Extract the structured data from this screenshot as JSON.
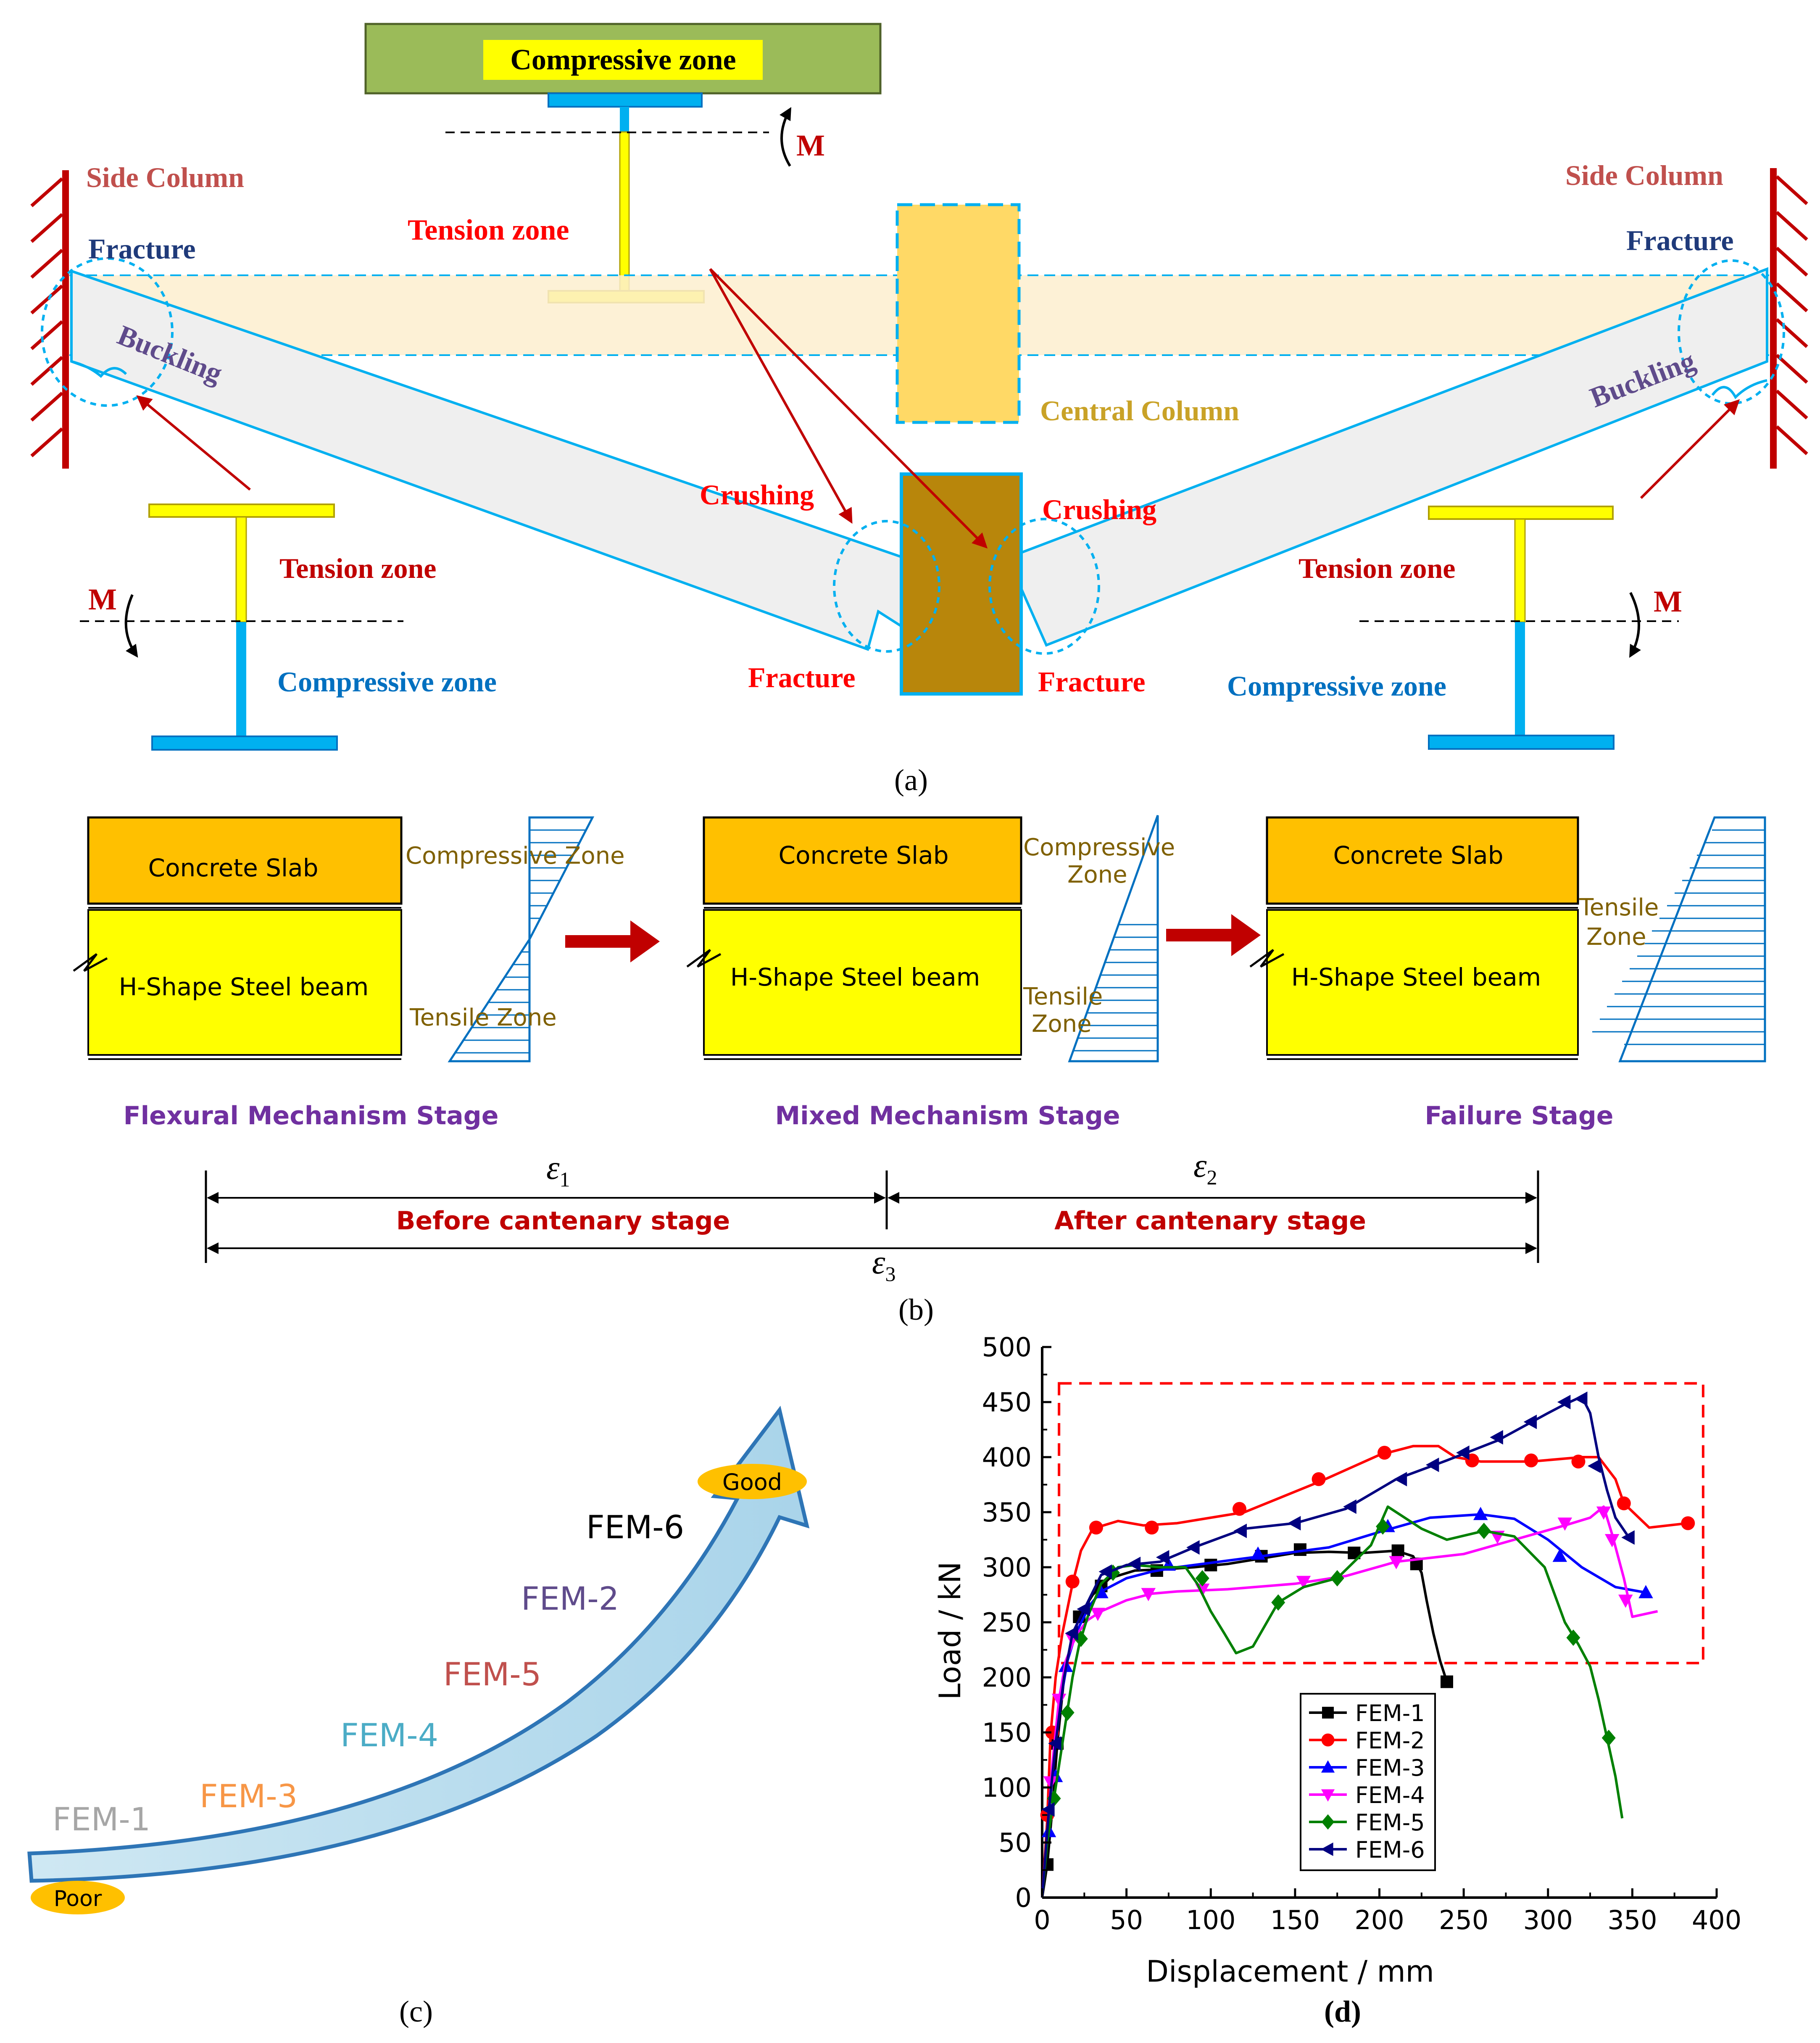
{
  "colors": {
    "dark_red": "#c00000",
    "red": "#ff0000",
    "bright_blue": "#0070c0",
    "cyan": "#00b0f0",
    "navy": "#1f3a7a",
    "olive_text": "#7f6000",
    "purple": "#7030a0",
    "gold_text": "#c9a227",
    "yellow": "#ffff00",
    "orange_slab": "#ffc000",
    "green_block": "#9bbb59",
    "light_beam": "#efefef",
    "band": "#fdefcf",
    "brown": "#b8860b"
  },
  "panel_a": {
    "top_box_label": "Compressive zone",
    "side_column_left": "Side Column",
    "side_column_right": "Side Column",
    "fracture": "Fracture",
    "buckling": "Buckling",
    "tension_zone": "Tension zone",
    "compressive_zone": "Compressive zone",
    "central_column": "Central Column",
    "crushing": "Crushing",
    "moment": "M",
    "caption": "(a)"
  },
  "panel_b": {
    "concrete_slab": "Concrete Slab",
    "steel_beam": "H-Shape Steel beam",
    "stage1": {
      "compressive": "Compressive Zone",
      "tensile": "Tensile Zone",
      "name": "Flexural Mechanism Stage"
    },
    "stage2": {
      "compressive_1": "Compressive",
      "compressive_2": "Zone",
      "tensile_1": "Tensile",
      "tensile_2": "Zone",
      "name": "Mixed Mechanism Stage"
    },
    "stage3": {
      "tensile_1": "Tensile",
      "tensile_2": "Zone",
      "name": "Failure Stage"
    },
    "eps": "ε",
    "eps1_sub": "1",
    "eps2_sub": "2",
    "eps3_sub": "3",
    "before": "Before cantenary stage",
    "after": "After  cantenary stage",
    "caption": "(b)"
  },
  "panel_c": {
    "good": "Good",
    "poor": "Poor",
    "ranking": [
      {
        "label": "FEM-6",
        "color": "#000000"
      },
      {
        "label": "FEM-2",
        "color": "#5f4b8b"
      },
      {
        "label": "FEM-5",
        "color": "#c0504d"
      },
      {
        "label": "FEM-4",
        "color": "#4bacc6"
      },
      {
        "label": "FEM-3",
        "color": "#f79646"
      },
      {
        "label": "FEM-1",
        "color": "#a6a6a6"
      }
    ],
    "caption": "(c)"
  },
  "chart_data": {
    "type": "line",
    "title": "",
    "xlabel": "Displacement / mm",
    "ylabel": "Load / kN",
    "xlim": [
      0,
      400
    ],
    "ylim": [
      0,
      500
    ],
    "xticks": [
      "0",
      "50",
      "100",
      "150",
      "200",
      "250",
      "300",
      "350",
      "400"
    ],
    "yticks": [
      "0",
      "50",
      "100",
      "150",
      "200",
      "250",
      "300",
      "350",
      "400",
      "450",
      "500"
    ],
    "grid": false,
    "legend_position": "bottom-center",
    "highlight_box": {
      "x": [
        10,
        392
      ],
      "y": [
        213,
        467
      ],
      "color": "#ff0000"
    },
    "series": [
      {
        "name": "FEM-1",
        "color": "#000000",
        "marker": "square",
        "points": [
          [
            0,
            0
          ],
          [
            3,
            30
          ],
          [
            6,
            80
          ],
          [
            9,
            140
          ],
          [
            13,
            200
          ],
          [
            17,
            230
          ],
          [
            22,
            255
          ],
          [
            30,
            275
          ],
          [
            40,
            290
          ],
          [
            55,
            297
          ],
          [
            70,
            298
          ],
          [
            90,
            300
          ],
          [
            110,
            303
          ],
          [
            130,
            308
          ],
          [
            150,
            313
          ],
          [
            170,
            314
          ],
          [
            190,
            313
          ],
          [
            210,
            315
          ],
          [
            220,
            310
          ],
          [
            225,
            295
          ],
          [
            228,
            270
          ],
          [
            232,
            240
          ],
          [
            236,
            215
          ],
          [
            240,
            196
          ]
        ],
        "marker_points": [
          [
            3,
            30
          ],
          [
            9,
            140
          ],
          [
            22,
            255
          ],
          [
            35,
            283
          ],
          [
            68,
            297
          ],
          [
            100,
            302
          ],
          [
            130,
            310
          ],
          [
            153,
            316
          ],
          [
            185,
            313
          ],
          [
            211,
            315
          ],
          [
            222,
            303
          ],
          [
            240,
            196
          ]
        ]
      },
      {
        "name": "FEM-2",
        "color": "#ff0000",
        "marker": "circle",
        "points": [
          [
            0,
            0
          ],
          [
            3,
            70
          ],
          [
            5,
            148
          ],
          [
            8,
            200
          ],
          [
            12,
            240
          ],
          [
            18,
            285
          ],
          [
            23,
            315
          ],
          [
            30,
            335
          ],
          [
            45,
            342
          ],
          [
            60,
            338
          ],
          [
            80,
            340
          ],
          [
            120,
            350
          ],
          [
            165,
            378
          ],
          [
            200,
            402
          ],
          [
            220,
            410
          ],
          [
            235,
            410
          ],
          [
            245,
            400
          ],
          [
            260,
            396
          ],
          [
            290,
            396
          ],
          [
            320,
            400
          ],
          [
            330,
            400
          ],
          [
            340,
            380
          ],
          [
            345,
            358
          ],
          [
            360,
            336
          ],
          [
            383,
            340
          ]
        ],
        "marker_points": [
          [
            3,
            75
          ],
          [
            6,
            150
          ],
          [
            18,
            287
          ],
          [
            32,
            336
          ],
          [
            65,
            336
          ],
          [
            117,
            353
          ],
          [
            164,
            380
          ],
          [
            203,
            404
          ],
          [
            255,
            397
          ],
          [
            290,
            397
          ],
          [
            318,
            396
          ],
          [
            345,
            358
          ],
          [
            383,
            340
          ]
        ]
      },
      {
        "name": "FEM-3",
        "color": "#0000ff",
        "marker": "triangle-up",
        "points": [
          [
            0,
            0
          ],
          [
            3,
            60
          ],
          [
            6,
            110
          ],
          [
            10,
            170
          ],
          [
            15,
            215
          ],
          [
            20,
            240
          ],
          [
            28,
            265
          ],
          [
            35,
            278
          ],
          [
            50,
            290
          ],
          [
            65,
            296
          ],
          [
            80,
            300
          ],
          [
            110,
            306
          ],
          [
            140,
            312
          ],
          [
            170,
            318
          ],
          [
            200,
            332
          ],
          [
            230,
            345
          ],
          [
            260,
            348
          ],
          [
            280,
            344
          ],
          [
            300,
            325
          ],
          [
            320,
            300
          ],
          [
            340,
            282
          ],
          [
            358,
            277
          ]
        ],
        "marker_points": [
          [
            4,
            60
          ],
          [
            8,
            110
          ],
          [
            14,
            210
          ],
          [
            20,
            240
          ],
          [
            35,
            277
          ],
          [
            75,
            302
          ],
          [
            128,
            312
          ],
          [
            205,
            337
          ],
          [
            260,
            348
          ],
          [
            307,
            310
          ],
          [
            358,
            277
          ]
        ]
      },
      {
        "name": "FEM-4",
        "color": "#ff00ff",
        "marker": "triangle-down",
        "points": [
          [
            0,
            0
          ],
          [
            3,
            60
          ],
          [
            6,
            120
          ],
          [
            10,
            180
          ],
          [
            14,
            215
          ],
          [
            20,
            238
          ],
          [
            27,
            252
          ],
          [
            35,
            260
          ],
          [
            50,
            270
          ],
          [
            65,
            276
          ],
          [
            80,
            278
          ],
          [
            110,
            280
          ],
          [
            150,
            285
          ],
          [
            180,
            292
          ],
          [
            210,
            305
          ],
          [
            250,
            312
          ],
          [
            280,
            325
          ],
          [
            310,
            338
          ],
          [
            325,
            345
          ],
          [
            333,
            355
          ],
          [
            338,
            330
          ],
          [
            345,
            290
          ],
          [
            350,
            255
          ],
          [
            365,
            260
          ]
        ],
        "marker_points": [
          [
            5,
            105
          ],
          [
            10,
            180
          ],
          [
            18,
            235
          ],
          [
            33,
            258
          ],
          [
            63,
            276
          ],
          [
            95,
            280
          ],
          [
            155,
            287
          ],
          [
            210,
            305
          ],
          [
            270,
            328
          ],
          [
            310,
            340
          ],
          [
            333,
            350
          ],
          [
            338,
            325
          ],
          [
            346,
            270
          ]
        ]
      },
      {
        "name": "FEM-5",
        "color": "#008000",
        "marker": "diamond",
        "points": [
          [
            0,
            0
          ],
          [
            3,
            50
          ],
          [
            7,
            90
          ],
          [
            11,
            130
          ],
          [
            15,
            170
          ],
          [
            18,
            200
          ],
          [
            22,
            230
          ],
          [
            27,
            255
          ],
          [
            35,
            285
          ],
          [
            45,
            300
          ],
          [
            55,
            302
          ],
          [
            70,
            300
          ],
          [
            85,
            300
          ],
          [
            92,
            285
          ],
          [
            100,
            260
          ],
          [
            108,
            240
          ],
          [
            115,
            222
          ],
          [
            125,
            228
          ],
          [
            140,
            268
          ],
          [
            155,
            282
          ],
          [
            175,
            290
          ],
          [
            195,
            320
          ],
          [
            205,
            355
          ],
          [
            225,
            335
          ],
          [
            240,
            325
          ],
          [
            262,
            333
          ],
          [
            280,
            328
          ],
          [
            298,
            300
          ],
          [
            310,
            250
          ],
          [
            318,
            230
          ],
          [
            325,
            210
          ],
          [
            330,
            180
          ],
          [
            335,
            145
          ],
          [
            340,
            110
          ],
          [
            344,
            72
          ]
        ],
        "marker_points": [
          [
            7,
            90
          ],
          [
            15,
            168
          ],
          [
            23,
            235
          ],
          [
            42,
            295
          ],
          [
            95,
            290
          ],
          [
            140,
            268
          ],
          [
            175,
            290
          ],
          [
            202,
            337
          ],
          [
            262,
            333
          ],
          [
            315,
            236
          ],
          [
            336,
            145
          ]
        ]
      },
      {
        "name": "FEM-6",
        "color": "#000080",
        "marker": "triangle-left",
        "points": [
          [
            0,
            0
          ],
          [
            4,
            80
          ],
          [
            8,
            140
          ],
          [
            13,
            200
          ],
          [
            18,
            240
          ],
          [
            25,
            262
          ],
          [
            35,
            293
          ],
          [
            50,
            302
          ],
          [
            70,
            305
          ],
          [
            90,
            318
          ],
          [
            120,
            335
          ],
          [
            150,
            340
          ],
          [
            180,
            353
          ],
          [
            210,
            380
          ],
          [
            240,
            397
          ],
          [
            270,
            415
          ],
          [
            300,
            440
          ],
          [
            310,
            448
          ],
          [
            320,
            455
          ],
          [
            325,
            440
          ],
          [
            330,
            400
          ],
          [
            335,
            370
          ],
          [
            340,
            345
          ],
          [
            348,
            327
          ]
        ],
        "marker_points": [
          [
            4,
            80
          ],
          [
            8,
            140
          ],
          [
            18,
            240
          ],
          [
            25,
            262
          ],
          [
            38,
            296
          ],
          [
            55,
            303
          ],
          [
            72,
            309
          ],
          [
            90,
            318
          ],
          [
            118,
            333
          ],
          [
            150,
            340
          ],
          [
            183,
            355
          ],
          [
            213,
            380
          ],
          [
            232,
            393
          ],
          [
            250,
            404
          ],
          [
            270,
            418
          ],
          [
            290,
            432
          ],
          [
            310,
            450
          ],
          [
            320,
            453
          ],
          [
            328,
            392
          ],
          [
            348,
            327
          ]
        ]
      }
    ],
    "caption": "(d)"
  }
}
